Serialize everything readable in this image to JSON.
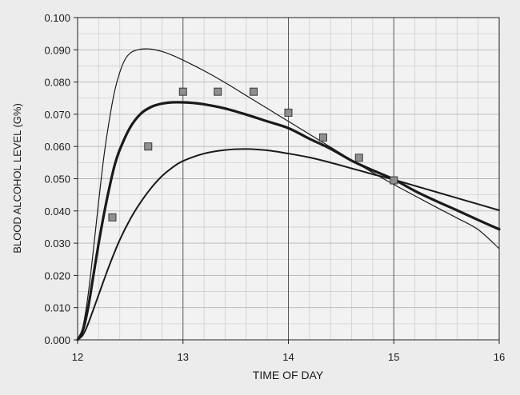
{
  "chart_data": {
    "type": "line",
    "title": "",
    "xlabel": "TIME OF DAY",
    "ylabel": "BLOOD ALCOHOL LEVEL (G%)",
    "xlim": [
      12,
      16
    ],
    "ylim": [
      0.0,
      0.1
    ],
    "grid": true,
    "legend": "none",
    "x_ticks": [
      12,
      13,
      14,
      15,
      16
    ],
    "x_tick_labels": [
      "12",
      "13",
      "14",
      "15",
      "16"
    ],
    "y_ticks": [
      0.0,
      0.01,
      0.02,
      0.03,
      0.04,
      0.05,
      0.06,
      0.07,
      0.08,
      0.09,
      0.1
    ],
    "y_tick_labels": [
      "0.000",
      "0.010",
      "0.020",
      "0.030",
      "0.040",
      "0.050",
      "0.060",
      "0.070",
      "0.080",
      "0.090",
      "0.100"
    ],
    "series": [
      {
        "kind": "curve",
        "style": "thin",
        "x": [
          12.0,
          12.05,
          12.1,
          12.15,
          12.2,
          12.25,
          12.3,
          12.35,
          12.4,
          12.45,
          12.5,
          12.55,
          12.6,
          12.65,
          12.7,
          12.8,
          12.9,
          13.0,
          13.2,
          13.4,
          13.6,
          13.8,
          14.0,
          14.2,
          14.4,
          14.6,
          14.8,
          15.0,
          15.2,
          15.4,
          15.6,
          15.8,
          16.0
        ],
        "values": [
          0.0,
          0.004,
          0.014,
          0.028,
          0.043,
          0.057,
          0.068,
          0.077,
          0.083,
          0.087,
          0.089,
          0.0898,
          0.0902,
          0.0903,
          0.0902,
          0.0895,
          0.0883,
          0.0868,
          0.0835,
          0.0798,
          0.0758,
          0.0718,
          0.0678,
          0.0638,
          0.0598,
          0.0558,
          0.0519,
          0.0482,
          0.0447,
          0.0412,
          0.0378,
          0.0342,
          0.0283
        ]
      },
      {
        "kind": "curve",
        "style": "bold",
        "x": [
          12.0,
          12.05,
          12.1,
          12.15,
          12.2,
          12.25,
          12.3,
          12.35,
          12.4,
          12.5,
          12.6,
          12.7,
          12.8,
          12.9,
          13.0,
          13.1,
          13.2,
          13.4,
          13.6,
          13.8,
          14.0,
          14.2,
          14.4,
          14.6,
          14.8,
          15.0,
          15.2,
          15.4,
          15.6,
          15.8,
          16.0
        ],
        "values": [
          0.0,
          0.003,
          0.01,
          0.02,
          0.03,
          0.039,
          0.047,
          0.054,
          0.059,
          0.066,
          0.0702,
          0.0723,
          0.0733,
          0.0737,
          0.0737,
          0.0735,
          0.0731,
          0.0718,
          0.0699,
          0.0678,
          0.0657,
          0.0624,
          0.0593,
          0.0556,
          0.0526,
          0.0498,
          0.0462,
          0.0431,
          0.0402,
          0.0372,
          0.0343
        ]
      },
      {
        "kind": "curve",
        "style": "medium",
        "x": [
          12.0,
          12.05,
          12.1,
          12.2,
          12.3,
          12.4,
          12.5,
          12.6,
          12.7,
          12.8,
          12.9,
          13.0,
          13.2,
          13.4,
          13.6,
          13.8,
          14.0,
          14.2,
          14.4,
          14.6,
          14.8,
          15.0,
          15.2,
          15.4,
          15.6,
          15.8,
          16.0
        ],
        "values": [
          0.0,
          0.0015,
          0.005,
          0.014,
          0.023,
          0.031,
          0.0375,
          0.0428,
          0.0472,
          0.0508,
          0.0535,
          0.0555,
          0.0578,
          0.0589,
          0.0592,
          0.0588,
          0.0578,
          0.0566,
          0.055,
          0.0532,
          0.0514,
          0.0497,
          0.0478,
          0.0459,
          0.044,
          0.0421,
          0.0402
        ]
      },
      {
        "kind": "markers",
        "marker": "square",
        "x": [
          12.33,
          12.67,
          13.0,
          13.33,
          13.67,
          14.0,
          14.33,
          14.67,
          15.0
        ],
        "values": [
          0.038,
          0.06,
          0.077,
          0.077,
          0.077,
          0.0705,
          0.0628,
          0.0565,
          0.0495
        ]
      }
    ]
  }
}
